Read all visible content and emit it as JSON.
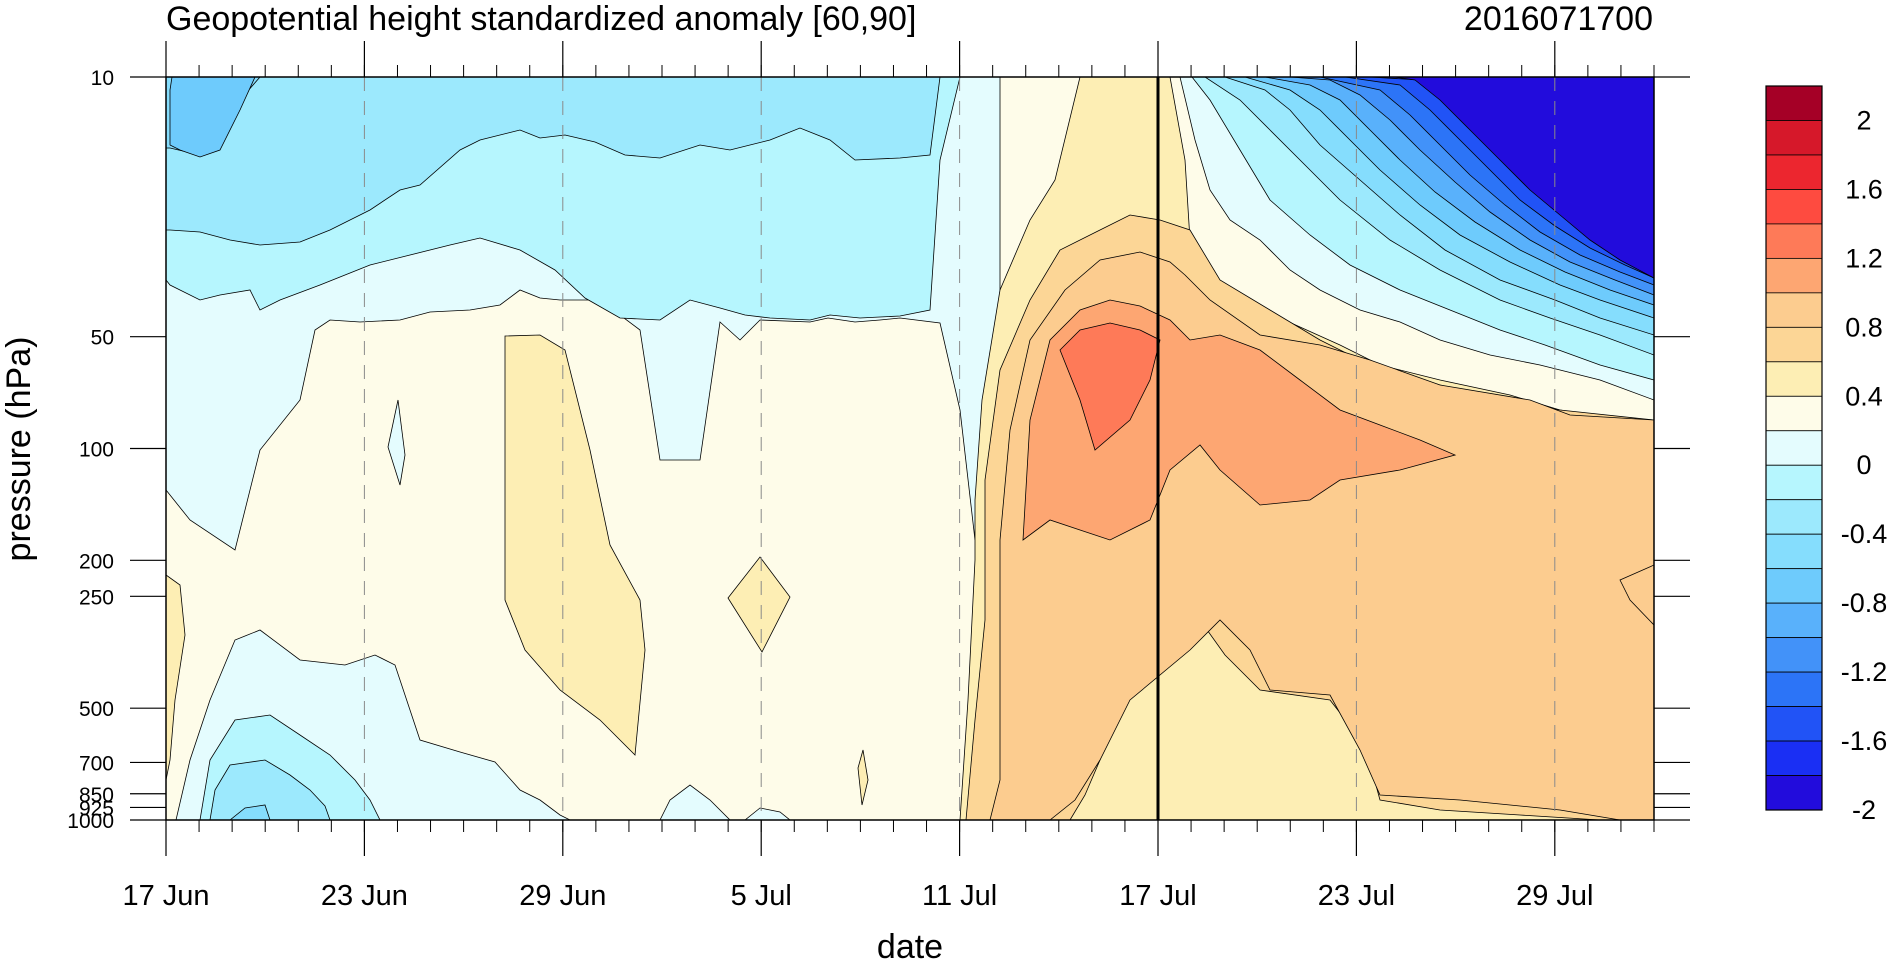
{
  "title_left": "Geopotential height standardized anomaly [60,90]",
  "title_right": "2016071700",
  "chart_data": {
    "type": "heatmap",
    "subtype": "pressure-time filled contour",
    "xlabel": "date",
    "ylabel": "pressure (hPa)",
    "x_range": [
      "2016-06-17",
      "2016-08-01"
    ],
    "x_tick_labels": [
      "17 Jun",
      "23 Jun",
      "29 Jun",
      "5 Jul",
      "11 Jul",
      "17 Jul",
      "23 Jul",
      "29 Jul"
    ],
    "x_tick_dates": [
      "2016-06-17",
      "2016-06-23",
      "2016-06-29",
      "2016-07-05",
      "2016-07-11",
      "2016-07-17",
      "2016-07-23",
      "2016-07-29"
    ],
    "y_scale": "log",
    "y_direction": "decreasing upward",
    "y_range": [
      1000,
      10
    ],
    "y_tick_labels": [
      "10",
      "50",
      "100",
      "200",
      "250",
      "500",
      "700",
      "850",
      "925",
      "1000"
    ],
    "y_tick_values": [
      10,
      50,
      100,
      200,
      250,
      500,
      700,
      850,
      925,
      1000
    ],
    "dashed_gridlines_at": [
      "23 Jun",
      "29 Jun",
      "5 Jul",
      "11 Jul",
      "23 Jul",
      "29 Jul"
    ],
    "reference_line": "17 Jul",
    "colorbar": {
      "placement": "right",
      "tick_labels": [
        "2",
        "1.6",
        "1.2",
        "0.8",
        "0.4",
        "0",
        "-0.4",
        "-0.8",
        "-1.2",
        "-1.6",
        "-2"
      ],
      "colors_top_to_bottom": [
        "#a50026",
        "#d6182a",
        "#ec262f",
        "#fe4b40",
        "#fe7a58",
        "#fda672",
        "#fccc8f",
        "#fcd696",
        "#fdeeb4",
        "#fefce9",
        "#e4fcfe",
        "#b6f6fe",
        "#9ce9fd",
        "#85ddfd",
        "#6ecbfc",
        "#59b1fb",
        "#4292f9",
        "#2c74f7",
        "#2153f6",
        "#1a2ff4",
        "#220cdc"
      ]
    },
    "regions": [
      {
        "description": "lower stratosphere 10-30 hPa before 11 Jul",
        "anomaly": -0.6
      },
      {
        "description": "strong negative upper-right 23 Jul-1 Aug at 10-40 hPa",
        "anomaly": -2.2
      },
      {
        "description": "positive core 15-17 Jul at 50-100 hPa",
        "anomaly": 1.1
      },
      {
        "description": "broad positive after 11 Jul in troposphere",
        "anomaly": 0.6
      },
      {
        "description": "weak negative near surface 17-24 Jun",
        "anomaly": -0.6
      }
    ]
  }
}
